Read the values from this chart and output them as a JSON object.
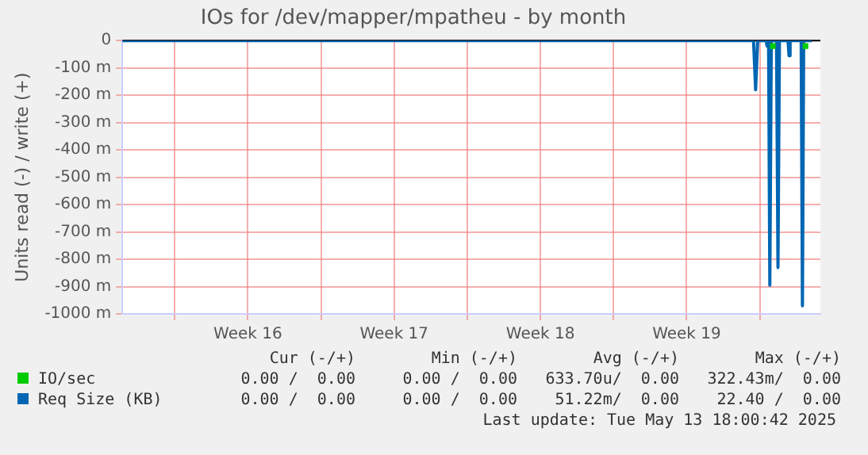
{
  "chart_data": {
    "type": "line",
    "title": "IOs for /dev/mapper/mpatheu - by month",
    "ylabel": "Units read (-) / write (+)",
    "xlim": [
      "2025-04-11T12:00",
      "2025-05-14T21:36"
    ],
    "xticks": [
      {
        "value": "2025-04-14T00:00",
        "label": null
      },
      {
        "value": "2025-04-17T12:00",
        "label": "Week 16"
      },
      {
        "value": "2025-04-21T00:00",
        "label": null
      },
      {
        "value": "2025-04-24T12:00",
        "label": "Week 17"
      },
      {
        "value": "2025-04-28T00:00",
        "label": null
      },
      {
        "value": "2025-05-01T12:00",
        "label": "Week 18"
      },
      {
        "value": "2025-05-05T00:00",
        "label": null
      },
      {
        "value": "2025-05-08T12:00",
        "label": "Week 19"
      },
      {
        "value": "2025-05-12T00:00",
        "label": null
      }
    ],
    "ylim": [
      -1000,
      0
    ],
    "yticks": [
      {
        "value": -1000,
        "label": "-1000 m"
      },
      {
        "value": -900,
        "label": "-900 m"
      },
      {
        "value": -800,
        "label": "-800 m"
      },
      {
        "value": -700,
        "label": "-700 m"
      },
      {
        "value": -600,
        "label": "-600 m"
      },
      {
        "value": -500,
        "label": "-500 m"
      },
      {
        "value": -400,
        "label": "-400 m"
      },
      {
        "value": -300,
        "label": "-300 m"
      },
      {
        "value": -200,
        "label": "-200 m"
      },
      {
        "value": -100,
        "label": "-100 m"
      },
      0
    ],
    "grid": true,
    "legend": "bottom",
    "marker": "none",
    "line_style": "solid",
    "series": [
      {
        "name": "Req Size (KB)",
        "color": "#0066b3",
        "x": [
          "2025-04-11T12:00",
          "2025-05-11T16:48",
          "2025-05-11T19:12",
          "2025-05-11T21:36",
          "2025-05-12T07:12",
          "2025-05-12T08:24",
          "2025-05-12T10:05",
          "2025-05-12T11:31",
          "2025-05-12T13:12",
          "2025-05-12T19:12",
          "2025-05-12T20:53",
          "2025-05-12T22:34",
          "2025-05-13T08:24",
          "2025-05-13T09:36",
          "2025-05-13T10:48",
          "2025-05-13T23:31",
          "2025-05-14T00:58",
          "2025-05-14T02:24",
          "2025-05-14T12:00"
        ],
        "values": [
          0,
          0,
          -180,
          0,
          0,
          -20,
          0,
          -895,
          0,
          0,
          -830,
          0,
          0,
          -55,
          0,
          0,
          -970,
          0,
          0
        ]
      },
      {
        "name": "IO/sec",
        "type": "scatter",
        "marker": "square",
        "color": "#00cc00",
        "x": [
          "2025-05-12T15:00",
          "2025-05-14T04:30"
        ],
        "values": [
          -20,
          -20
        ]
      }
    ],
    "annotations": [
      "Cur (-/+)",
      "Min (-/+)",
      "Avg (-/+)",
      "Max (-/+)",
      "0.00 /  0.00",
      "0.00 /  0.00",
      "633.70u/  0.00",
      "322.43m/  0.00",
      "0.00 /  0.00",
      "0.00 /  0.00",
      "51.22m/  0.00",
      "22.40 /  0.00",
      "Last update: Tue May 13 18:00:42 2025"
    ]
  }
}
